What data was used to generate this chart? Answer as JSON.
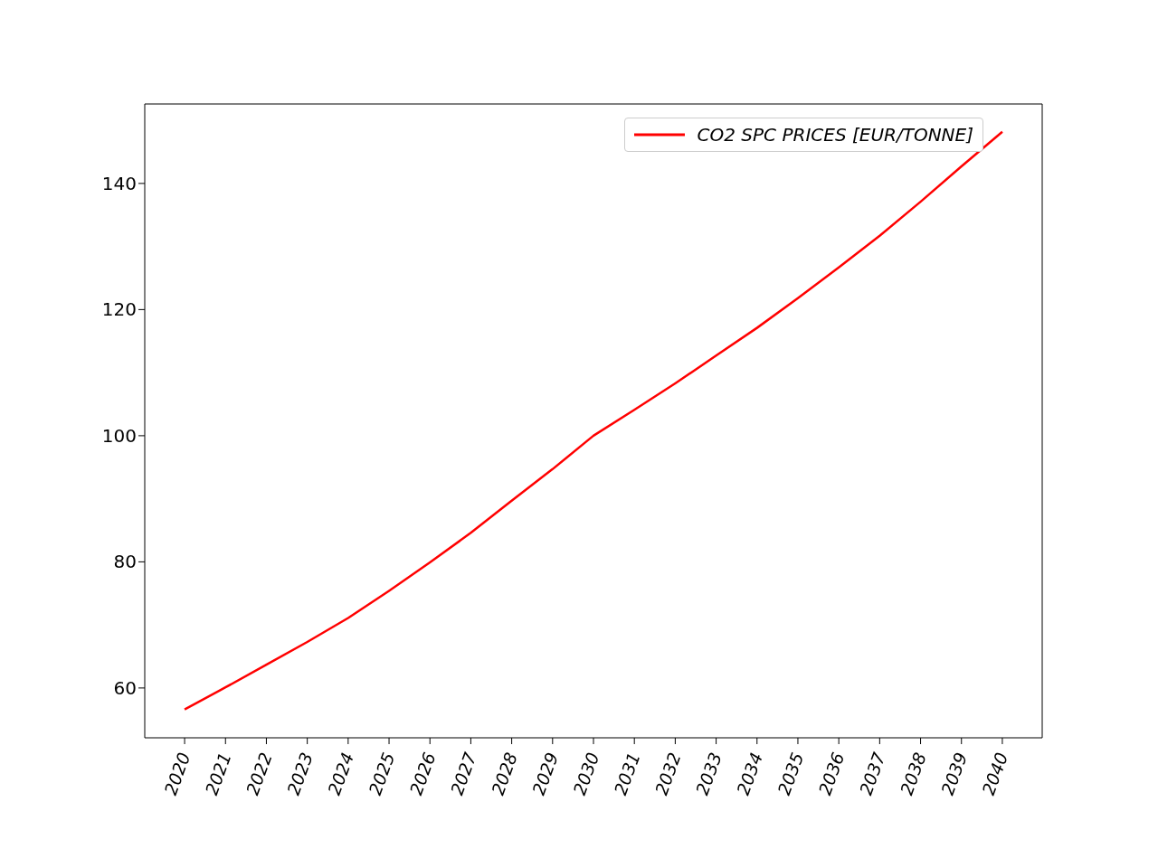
{
  "chart_data": {
    "type": "line",
    "categories": [
      "2020",
      "2021",
      "2022",
      "2023",
      "2024",
      "2025",
      "2026",
      "2027",
      "2028",
      "2029",
      "2030",
      "2031",
      "2032",
      "2033",
      "2034",
      "2035",
      "2036",
      "2037",
      "2038",
      "2039",
      "2040"
    ],
    "series": [
      {
        "name": "CO2 SPC PRICES [EUR/TONNE]",
        "color": "#ff0000",
        "values": [
          56.6,
          60.1,
          63.7,
          67.3,
          71.1,
          75.4,
          79.9,
          84.6,
          89.7,
          94.7,
          100,
          104.1,
          108.3,
          112.7,
          117.1,
          121.8,
          126.7,
          131.7,
          137.1,
          142.7,
          148.2
        ]
      }
    ],
    "ylim": [
      52.1,
      152.6
    ],
    "yticks": [
      60,
      80,
      100,
      120,
      140
    ],
    "grid": false,
    "legend": "top right",
    "marker": "none",
    "line_style": "solid"
  }
}
